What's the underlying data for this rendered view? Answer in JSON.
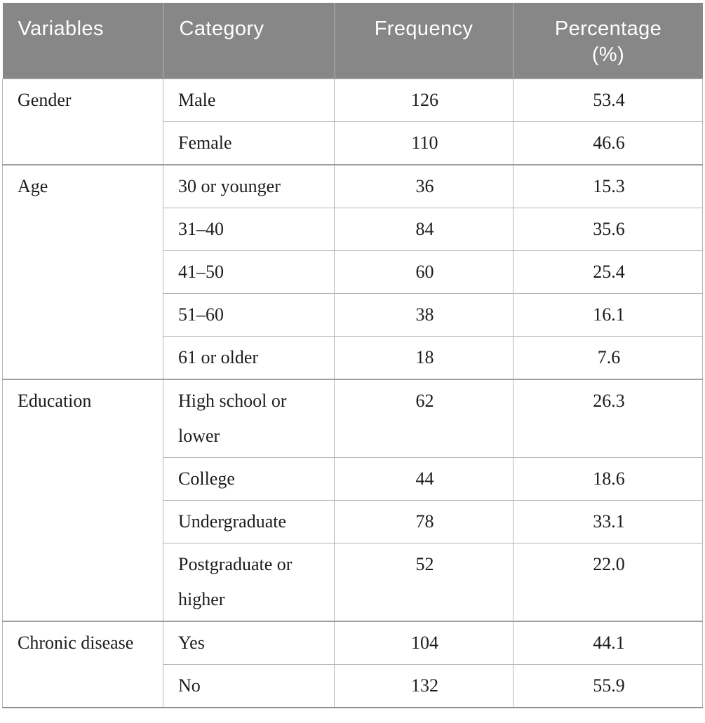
{
  "table": {
    "headers": [
      {
        "text": "Variables"
      },
      {
        "text": "Category"
      },
      {
        "text": "Frequency"
      },
      {
        "text": "Percentage",
        "text2": "(%)"
      }
    ],
    "groups": [
      {
        "variable": "Gender",
        "rows": [
          {
            "category": "Male",
            "frequency": "126",
            "percentage": "53.4"
          },
          {
            "category": "Female",
            "frequency": "110",
            "percentage": "46.6"
          }
        ]
      },
      {
        "variable": "Age",
        "rows": [
          {
            "category": "30 or younger",
            "frequency": "36",
            "percentage": "15.3"
          },
          {
            "category": "31–40",
            "frequency": "84",
            "percentage": "35.6"
          },
          {
            "category": "41–50",
            "frequency": "60",
            "percentage": "25.4"
          },
          {
            "category": "51–60",
            "frequency": "38",
            "percentage": "16.1"
          },
          {
            "category": "61 or older",
            "frequency": "18",
            "percentage": "7.6"
          }
        ]
      },
      {
        "variable": "Education",
        "rows": [
          {
            "category": "High school or lower",
            "frequency": "62",
            "percentage": "26.3"
          },
          {
            "category": "College",
            "frequency": "44",
            "percentage": "18.6"
          },
          {
            "category": "Undergraduate",
            "frequency": "78",
            "percentage": "33.1"
          },
          {
            "category": "Postgraduate or higher",
            "frequency": "52",
            "percentage": "22.0"
          }
        ]
      },
      {
        "variable": "Chronic disease",
        "rows": [
          {
            "category": "Yes",
            "frequency": "104",
            "percentage": "44.1"
          },
          {
            "category": "No",
            "frequency": "132",
            "percentage": "55.9"
          }
        ]
      }
    ]
  },
  "colors": {
    "header_bg": "#878787",
    "header_text": "#ffffff",
    "header_divider": "#9c9c9c",
    "body_text": "#1c1c1c",
    "grid_line": "#b5b5b5",
    "section_line": "#9e9e9e",
    "bottom_border": "#8d8d8d",
    "background": "#ffffff"
  }
}
